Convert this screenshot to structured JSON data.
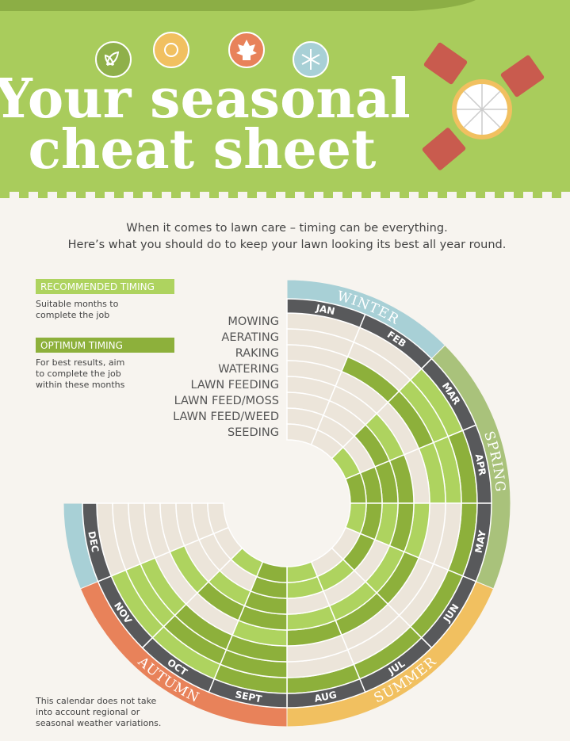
{
  "header": {
    "title_lines": [
      "Your seasonal",
      "cheat sheet"
    ]
  },
  "intro": [
    "When it comes to lawn care – timing can be everything.",
    "Here’s what you should do to keep your lawn looking its best all year round."
  ],
  "legend": [
    {
      "label": "RECOMMENDED TIMING",
      "color": "#aed35f",
      "description": [
        "Suitable months to",
        "complete the job"
      ]
    },
    {
      "label": "OPTIMUM TIMING",
      "color": "#8db03b",
      "description": [
        "For best results, aim",
        "to complete the job",
        "within these months"
      ]
    }
  ],
  "seasons": [
    {
      "name": "WINTER",
      "color": "#a8d0d6"
    },
    {
      "name": "SPRING",
      "color": "#a9c27b"
    },
    {
      "name": "SUMMER",
      "color": "#f1c060"
    },
    {
      "name": "AUTUMN",
      "color": "#e8825a"
    }
  ],
  "months": [
    "JAN",
    "FEB",
    "MAR",
    "APR",
    "MAY",
    "JUN",
    "JUL",
    "AUG",
    "SEPT",
    "OCT",
    "NOV",
    "DEC"
  ],
  "activities": [
    {
      "name": "MOWING",
      "timing": [
        0,
        0,
        1,
        2,
        2,
        2,
        2,
        2,
        2,
        1,
        1,
        0
      ]
    },
    {
      "name": "AERATING",
      "timing": [
        0,
        0,
        1,
        1,
        0,
        0,
        0,
        0,
        2,
        2,
        1,
        0
      ]
    },
    {
      "name": "RAKING",
      "timing": [
        0,
        2,
        2,
        1,
        0,
        0,
        0,
        0,
        2,
        2,
        1,
        0
      ]
    },
    {
      "name": "WATERING",
      "timing": [
        0,
        0,
        0,
        0,
        1,
        2,
        2,
        2,
        1,
        0,
        0,
        0
      ]
    },
    {
      "name": "LAWN FEEDING",
      "timing": [
        0,
        0,
        1,
        2,
        2,
        1,
        1,
        1,
        2,
        2,
        1,
        0
      ]
    },
    {
      "name": "LAWN FEED/MOSS",
      "timing": [
        0,
        0,
        2,
        2,
        1,
        0,
        0,
        0,
        2,
        1,
        0,
        0
      ]
    },
    {
      "name": "LAWN FEED/WEED",
      "timing": [
        0,
        0,
        0,
        2,
        2,
        2,
        1,
        1,
        2,
        0,
        0,
        0
      ]
    },
    {
      "name": "SEEDING",
      "timing": [
        0,
        0,
        1,
        2,
        1,
        0,
        0,
        1,
        2,
        1,
        0,
        0
      ]
    }
  ],
  "footnote": [
    "This calendar does not take",
    "into account regional or",
    "seasonal weather variations."
  ]
}
